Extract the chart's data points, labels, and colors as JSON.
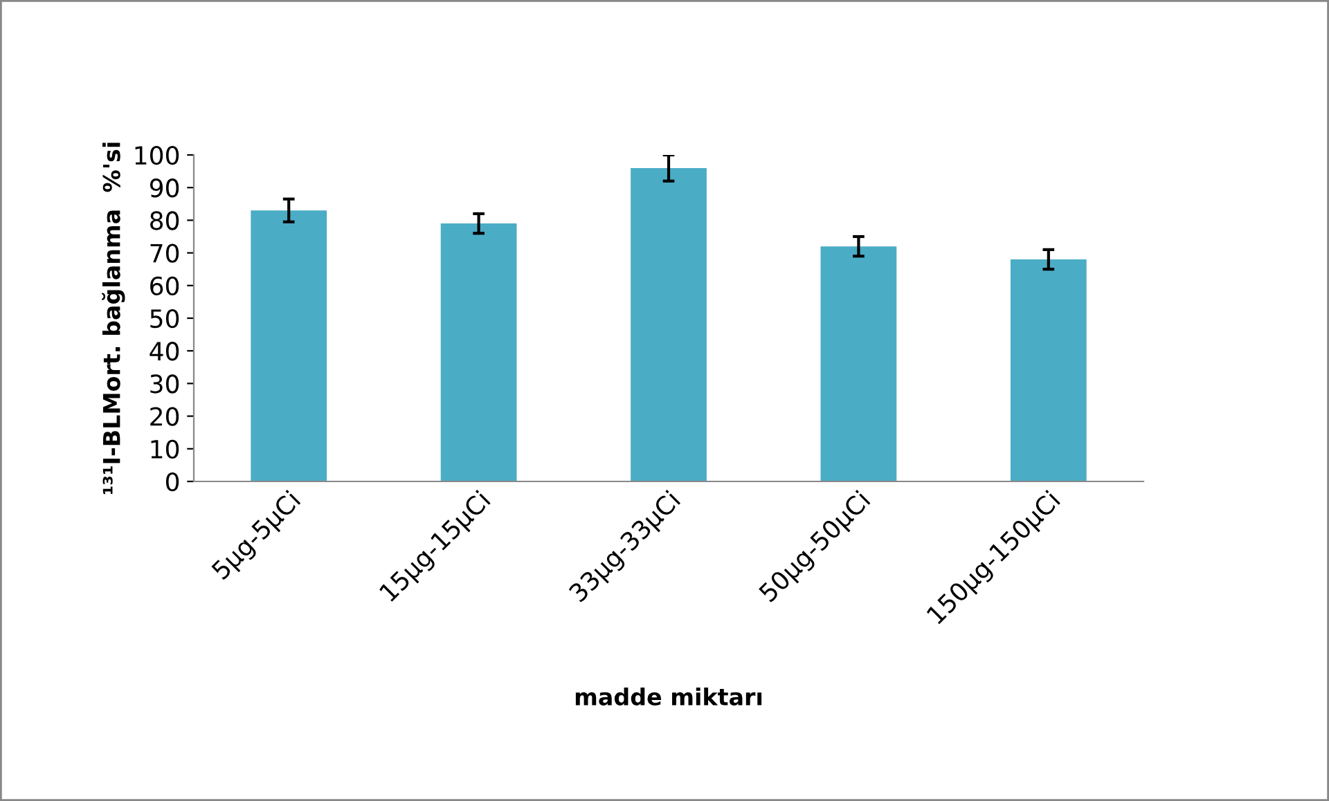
{
  "chart_data": {
    "type": "bar",
    "xlabel": "madde miktarı",
    "ylabel": "¹³¹I-BLMort. bağlanma  %'si",
    "categories": [
      "5µg-5µCi",
      "15µg-15µCi",
      "33µg-33µCi",
      "50µg-50µCi",
      "150µg-150µCi"
    ],
    "values": [
      83,
      79,
      96,
      72,
      68
    ],
    "errors": [
      3.5,
      3,
      4,
      3,
      3
    ],
    "color": "#4bacc6",
    "ylim": [
      0,
      100
    ],
    "yticks": [
      0,
      10,
      20,
      30,
      40,
      50,
      60,
      70,
      80,
      90,
      100
    ],
    "grid": false,
    "legend": false
  }
}
